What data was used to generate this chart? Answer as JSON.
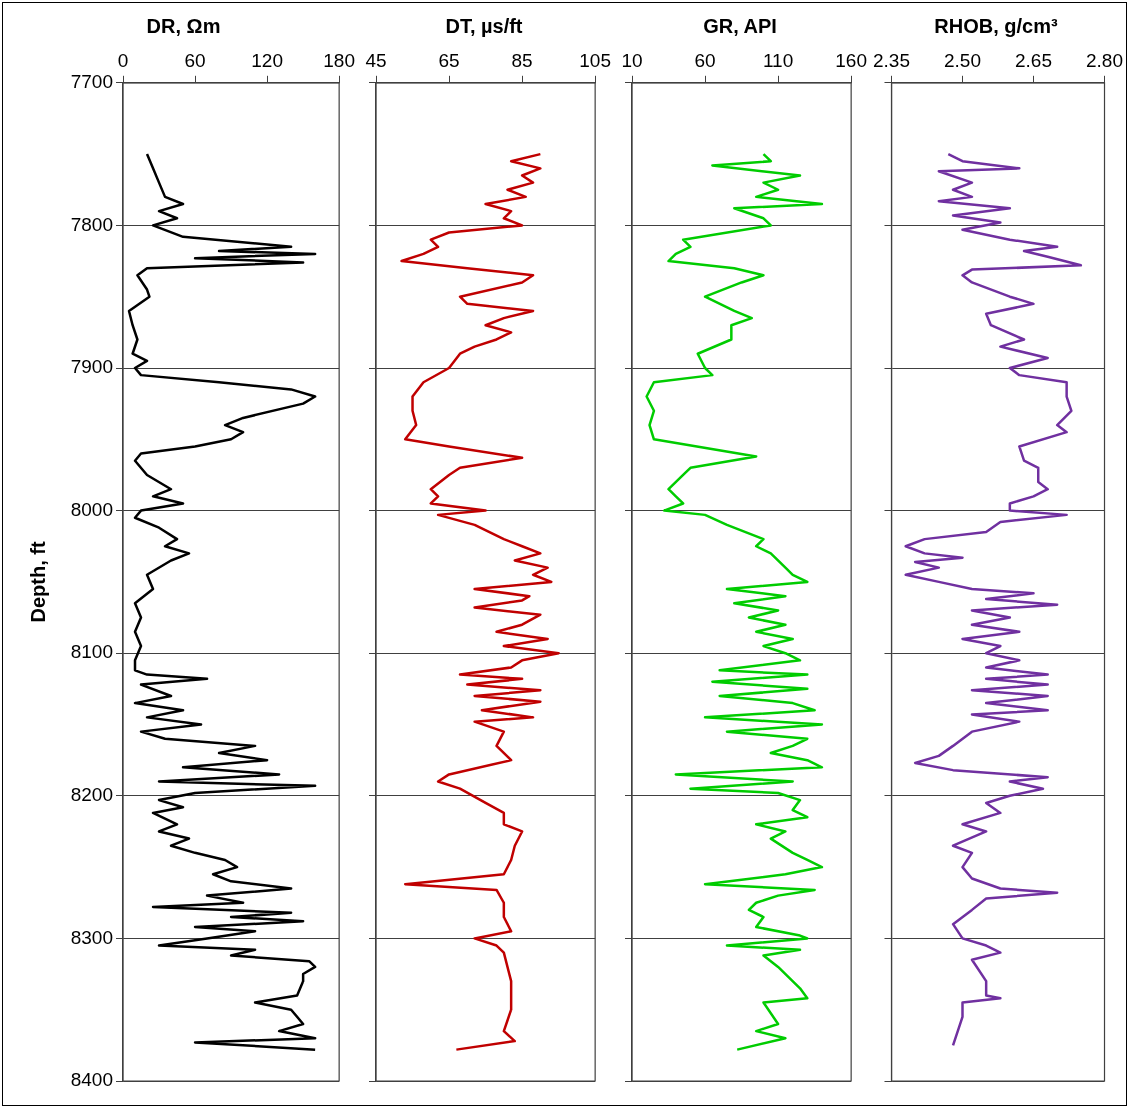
{
  "chart_data": [
    {
      "type": "line",
      "title": "DR, Ωm",
      "ylabel": "Depth, ft",
      "xlim": [
        0,
        180
      ],
      "xticks": [
        0,
        60,
        120,
        180
      ],
      "ylim": [
        8400,
        7700
      ],
      "yticks": [
        7700,
        7800,
        7900,
        8000,
        8100,
        8200,
        8300,
        8400
      ],
      "grid": "y",
      "marker": "none",
      "series": [
        {
          "color": "#000000",
          "x": [
            20,
            25,
            30,
            35,
            50,
            30,
            45,
            25,
            50,
            140,
            80,
            160,
            60,
            150,
            20,
            12,
            20,
            22,
            5,
            8,
            12,
            8,
            20,
            10,
            15,
            80,
            140,
            160,
            150,
            100,
            85,
            100,
            90,
            60,
            15,
            10,
            20,
            40,
            25,
            50,
            15,
            10,
            30,
            45,
            35,
            55,
            40,
            20,
            25,
            10,
            15,
            10,
            15,
            10,
            10,
            20,
            70,
            15,
            40,
            10,
            50,
            20,
            65,
            15,
            35,
            110,
            80,
            120,
            50,
            130,
            30,
            160,
            60,
            30,
            50,
            25,
            45,
            30,
            55,
            40,
            60,
            85,
            95,
            75,
            90,
            140,
            70,
            100,
            25,
            140,
            90,
            150,
            60,
            110,
            70,
            30,
            110,
            90,
            155,
            160,
            150,
            150,
            145,
            110,
            140,
            150,
            130,
            160,
            60,
            160
          ],
          "values": [
            7750,
            7760,
            7770,
            7780,
            7785,
            7790,
            7795,
            7800,
            7808,
            7815,
            7818,
            7820,
            7823,
            7826,
            7830,
            7835,
            7845,
            7850,
            7860,
            7870,
            7880,
            7890,
            7895,
            7900,
            7905,
            7910,
            7915,
            7920,
            7925,
            7935,
            7940,
            7945,
            7950,
            7955,
            7960,
            7965,
            7975,
            7985,
            7990,
            7995,
            8000,
            8005,
            8012,
            8020,
            8025,
            8030,
            8035,
            8045,
            8055,
            8065,
            8075,
            8085,
            8095,
            8105,
            8112,
            8115,
            8118,
            8122,
            8130,
            8135,
            8140,
            8145,
            8150,
            8155,
            8160,
            8165,
            8170,
            8175,
            8180,
            8185,
            8190,
            8193,
            8198,
            8203,
            8208,
            8212,
            8220,
            8225,
            8230,
            8235,
            8240,
            8245,
            8250,
            8255,
            8260,
            8265,
            8270,
            8275,
            8278,
            8282,
            8285,
            8288,
            8292,
            8295,
            8300,
            8305,
            8308,
            8312,
            8316,
            8320,
            8325,
            8330,
            8340,
            8345,
            8350,
            8360,
            8365,
            8370,
            8373,
            8378
          ]
        }
      ]
    },
    {
      "type": "line",
      "title": "DT, µs/ft",
      "xlim": [
        45,
        105
      ],
      "xticks": [
        45,
        65,
        85,
        105
      ],
      "ylim": [
        8400,
        7700
      ],
      "yticks": [
        7700,
        7800,
        7900,
        8000,
        8100,
        8200,
        8300,
        8400
      ],
      "grid": "y",
      "marker": "none",
      "tick_labels": "x",
      "series": [
        {
          "color": "#c00000",
          "x": [
            90,
            82,
            90,
            85,
            88,
            81,
            86,
            75,
            82,
            80,
            85,
            65,
            60,
            62,
            58,
            52,
            70,
            88,
            85,
            68,
            70,
            88,
            80,
            75,
            82,
            78,
            72,
            68,
            65,
            58,
            55,
            55,
            56,
            53,
            65,
            85,
            68,
            65,
            60,
            62,
            60,
            75,
            62,
            72,
            80,
            85,
            90,
            83,
            92,
            88,
            93,
            72,
            87,
            85,
            72,
            90,
            85,
            78,
            92,
            80,
            95,
            85,
            82,
            68,
            85,
            70,
            90,
            72,
            90,
            74,
            88,
            72,
            80,
            78,
            82,
            65,
            62,
            68,
            75,
            80,
            80,
            85,
            83,
            82,
            80,
            53,
            78,
            80,
            80,
            82,
            72,
            78,
            80,
            82,
            82,
            80,
            83,
            67
          ],
          "values": [
            7750,
            7755,
            7760,
            7765,
            7770,
            7775,
            7780,
            7785,
            7790,
            7795,
            7800,
            7805,
            7810,
            7815,
            7820,
            7825,
            7830,
            7835,
            7840,
            7850,
            7855,
            7860,
            7865,
            7870,
            7875,
            7880,
            7885,
            7890,
            7900,
            7910,
            7920,
            7930,
            7940,
            7950,
            7955,
            7963,
            7970,
            7975,
            7985,
            7990,
            7995,
            8000,
            8003,
            8010,
            8020,
            8025,
            8030,
            8035,
            8040,
            8045,
            8050,
            8055,
            8060,
            8063,
            8068,
            8073,
            8080,
            8085,
            8090,
            8095,
            8100,
            8105,
            8110,
            8115,
            8118,
            8122,
            8126,
            8130,
            8134,
            8140,
            8145,
            8148,
            8155,
            8165,
            8175,
            8185,
            8190,
            8195,
            8205,
            8212,
            8220,
            8225,
            8235,
            8245,
            8255,
            8262,
            8266,
            8275,
            8285,
            8295,
            8300,
            8305,
            8310,
            8330,
            8350,
            8365,
            8372,
            8378
          ]
        }
      ]
    },
    {
      "type": "line",
      "title": "GR, API",
      "xlim": [
        10,
        160
      ],
      "xticks": [
        10,
        60,
        110,
        160
      ],
      "ylim": [
        8400,
        7700
      ],
      "yticks": [
        7700,
        7800,
        7900,
        8000,
        8100,
        8200,
        8300,
        8400
      ],
      "grid": "y",
      "marker": "none",
      "tick_labels": "x",
      "series": [
        {
          "color": "#00cc00",
          "x": [
            100,
            105,
            65,
            125,
            100,
            110,
            95,
            140,
            80,
            100,
            105,
            45,
            50,
            40,
            35,
            80,
            100,
            85,
            60,
            80,
            92,
            78,
            78,
            55,
            60,
            65,
            25,
            20,
            25,
            22,
            25,
            95,
            50,
            45,
            35,
            40,
            45,
            32,
            60,
            75,
            100,
            95,
            105,
            115,
            120,
            130,
            75,
            115,
            80,
            110,
            90,
            115,
            95,
            120,
            100,
            115,
            125,
            70,
            130,
            65,
            130,
            70,
            120,
            135,
            60,
            140,
            75,
            130,
            120,
            105,
            130,
            140,
            40,
            120,
            50,
            110,
            125,
            120,
            130,
            95,
            115,
            105,
            120,
            130,
            140,
            115,
            60,
            135,
            110,
            95,
            90,
            100,
            95,
            125,
            130,
            75,
            125,
            100,
            110,
            125,
            130,
            100,
            110,
            95,
            115,
            82
          ],
          "values": [
            7750,
            7755,
            7758,
            7765,
            7770,
            7775,
            7780,
            7785,
            7788,
            7795,
            7800,
            7810,
            7815,
            7820,
            7825,
            7830,
            7835,
            7840,
            7850,
            7860,
            7865,
            7870,
            7880,
            7890,
            7900,
            7905,
            7910,
            7920,
            7930,
            7940,
            7950,
            7962,
            7970,
            7975,
            7985,
            7990,
            7995,
            8000,
            8003,
            8010,
            8020,
            8025,
            8030,
            8040,
            8045,
            8050,
            8055,
            8060,
            8065,
            8070,
            8075,
            8080,
            8085,
            8090,
            8095,
            8100,
            8105,
            8112,
            8115,
            8120,
            8125,
            8130,
            8135,
            8140,
            8145,
            8150,
            8155,
            8160,
            8165,
            8170,
            8175,
            8180,
            8185,
            8190,
            8195,
            8198,
            8203,
            8210,
            8215,
            8220,
            8225,
            8230,
            8240,
            8245,
            8250,
            8255,
            8262,
            8266,
            8270,
            8275,
            8280,
            8285,
            8292,
            8298,
            8300,
            8305,
            8308,
            8312,
            8320,
            8335,
            8342,
            8345,
            8360,
            8365,
            8370,
            8378
          ]
        }
      ]
    },
    {
      "type": "line",
      "title": "RHOB, g/cm³",
      "xlim": [
        2.35,
        2.8
      ],
      "xticks": [
        2.35,
        {
          "value": 2.5,
          "label": "2.50"
        },
        2.65,
        {
          "value": 2.8,
          "label": "2.80"
        }
      ],
      "ylim": [
        8400,
        7700
      ],
      "yticks": [
        7700,
        7800,
        7900,
        8000,
        8100,
        8200,
        8300,
        8400
      ],
      "grid": "y",
      "marker": "none",
      "tick_labels": "x",
      "series": [
        {
          "color": "#7030a0",
          "x": [
            2.47,
            2.5,
            2.62,
            2.45,
            2.52,
            2.48,
            2.52,
            2.45,
            2.6,
            2.48,
            2.58,
            2.5,
            2.6,
            2.7,
            2.63,
            2.68,
            2.75,
            2.52,
            2.5,
            2.52,
            2.6,
            2.65,
            2.55,
            2.56,
            2.63,
            2.58,
            2.68,
            2.6,
            2.62,
            2.72,
            2.72,
            2.73,
            2.7,
            2.72,
            2.62,
            2.63,
            2.66,
            2.66,
            2.68,
            2.65,
            2.6,
            2.6,
            2.72,
            2.58,
            2.55,
            2.42,
            2.38,
            2.42,
            2.5,
            2.4,
            2.45,
            2.38,
            2.45,
            2.52,
            2.65,
            2.55,
            2.7,
            2.52,
            2.6,
            2.52,
            2.62,
            2.5,
            2.58,
            2.55,
            2.62,
            2.55,
            2.68,
            2.55,
            2.68,
            2.52,
            2.68,
            2.55,
            2.68,
            2.52,
            2.62,
            2.52,
            2.48,
            2.45,
            2.4,
            2.48,
            2.68,
            2.6,
            2.67,
            2.6,
            2.55,
            2.58,
            2.5,
            2.55,
            2.48,
            2.52,
            2.5,
            2.52,
            2.58,
            2.7,
            2.55,
            2.52,
            2.48,
            2.5,
            2.55,
            2.58,
            2.52,
            2.55,
            2.55,
            2.58,
            2.5,
            2.5,
            2.49,
            2.48
          ],
          "values": [
            7750,
            7755,
            7760,
            7762,
            7770,
            7775,
            7780,
            7783,
            7788,
            7793,
            7798,
            7803,
            7810,
            7815,
            7818,
            7822,
            7828,
            7831,
            7835,
            7840,
            7850,
            7855,
            7862,
            7870,
            7880,
            7885,
            7893,
            7900,
            7905,
            7910,
            7920,
            7930,
            7940,
            7945,
            7955,
            7965,
            7970,
            7980,
            7985,
            7990,
            7995,
            8000,
            8003,
            8008,
            8015,
            8020,
            8025,
            8030,
            8033,
            8036,
            8040,
            8045,
            8050,
            8055,
            8058,
            8062,
            8066,
            8070,
            8075,
            8080,
            8085,
            8090,
            8095,
            8100,
            8105,
            8110,
            8115,
            8118,
            8122,
            8126,
            8130,
            8135,
            8140,
            8143,
            8148,
            8155,
            8165,
            8172,
            8177,
            8182,
            8187,
            8190,
            8195,
            8200,
            8205,
            8212,
            8220,
            8225,
            8235,
            8240,
            8250,
            8258,
            8265,
            8268,
            8272,
            8280,
            8290,
            8300,
            8305,
            8310,
            8315,
            8330,
            8340,
            8342,
            8345,
            8355,
            8365,
            8375
          ]
        }
      ]
    }
  ]
}
